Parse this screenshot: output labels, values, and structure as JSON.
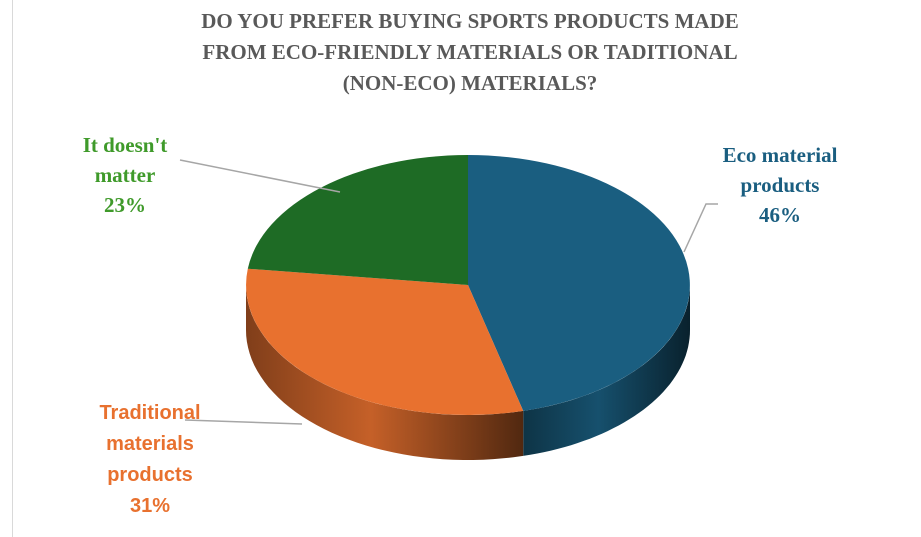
{
  "colors": {
    "eco": "#1a5e80",
    "traditional": "#e8712f",
    "indifferent": "#1e6b25",
    "title": "#595959",
    "leader": "#a6a6a6"
  },
  "chart_data": {
    "type": "pie",
    "title_lines": [
      "DO YOU PREFER BUYING SPORTS PRODUCTS MADE",
      "FROM ECO-FRIENDLY MATERIALS  OR TADITIONAL",
      "(NON-ECO) MATERIALS?"
    ],
    "slices": [
      {
        "label_lines": [
          "Eco material",
          "products"
        ],
        "value": 46,
        "value_text": "46%",
        "color": "#1a5e80"
      },
      {
        "label_lines": [
          "Traditional",
          "materials",
          "products"
        ],
        "value": 31,
        "value_text": "31%",
        "color": "#e8712f"
      },
      {
        "label_lines": [
          "It doesn't",
          "matter"
        ],
        "value": 23,
        "value_text": "23%",
        "color": "#1e6b25"
      }
    ],
    "style": "3d-pie",
    "legend": "none"
  }
}
